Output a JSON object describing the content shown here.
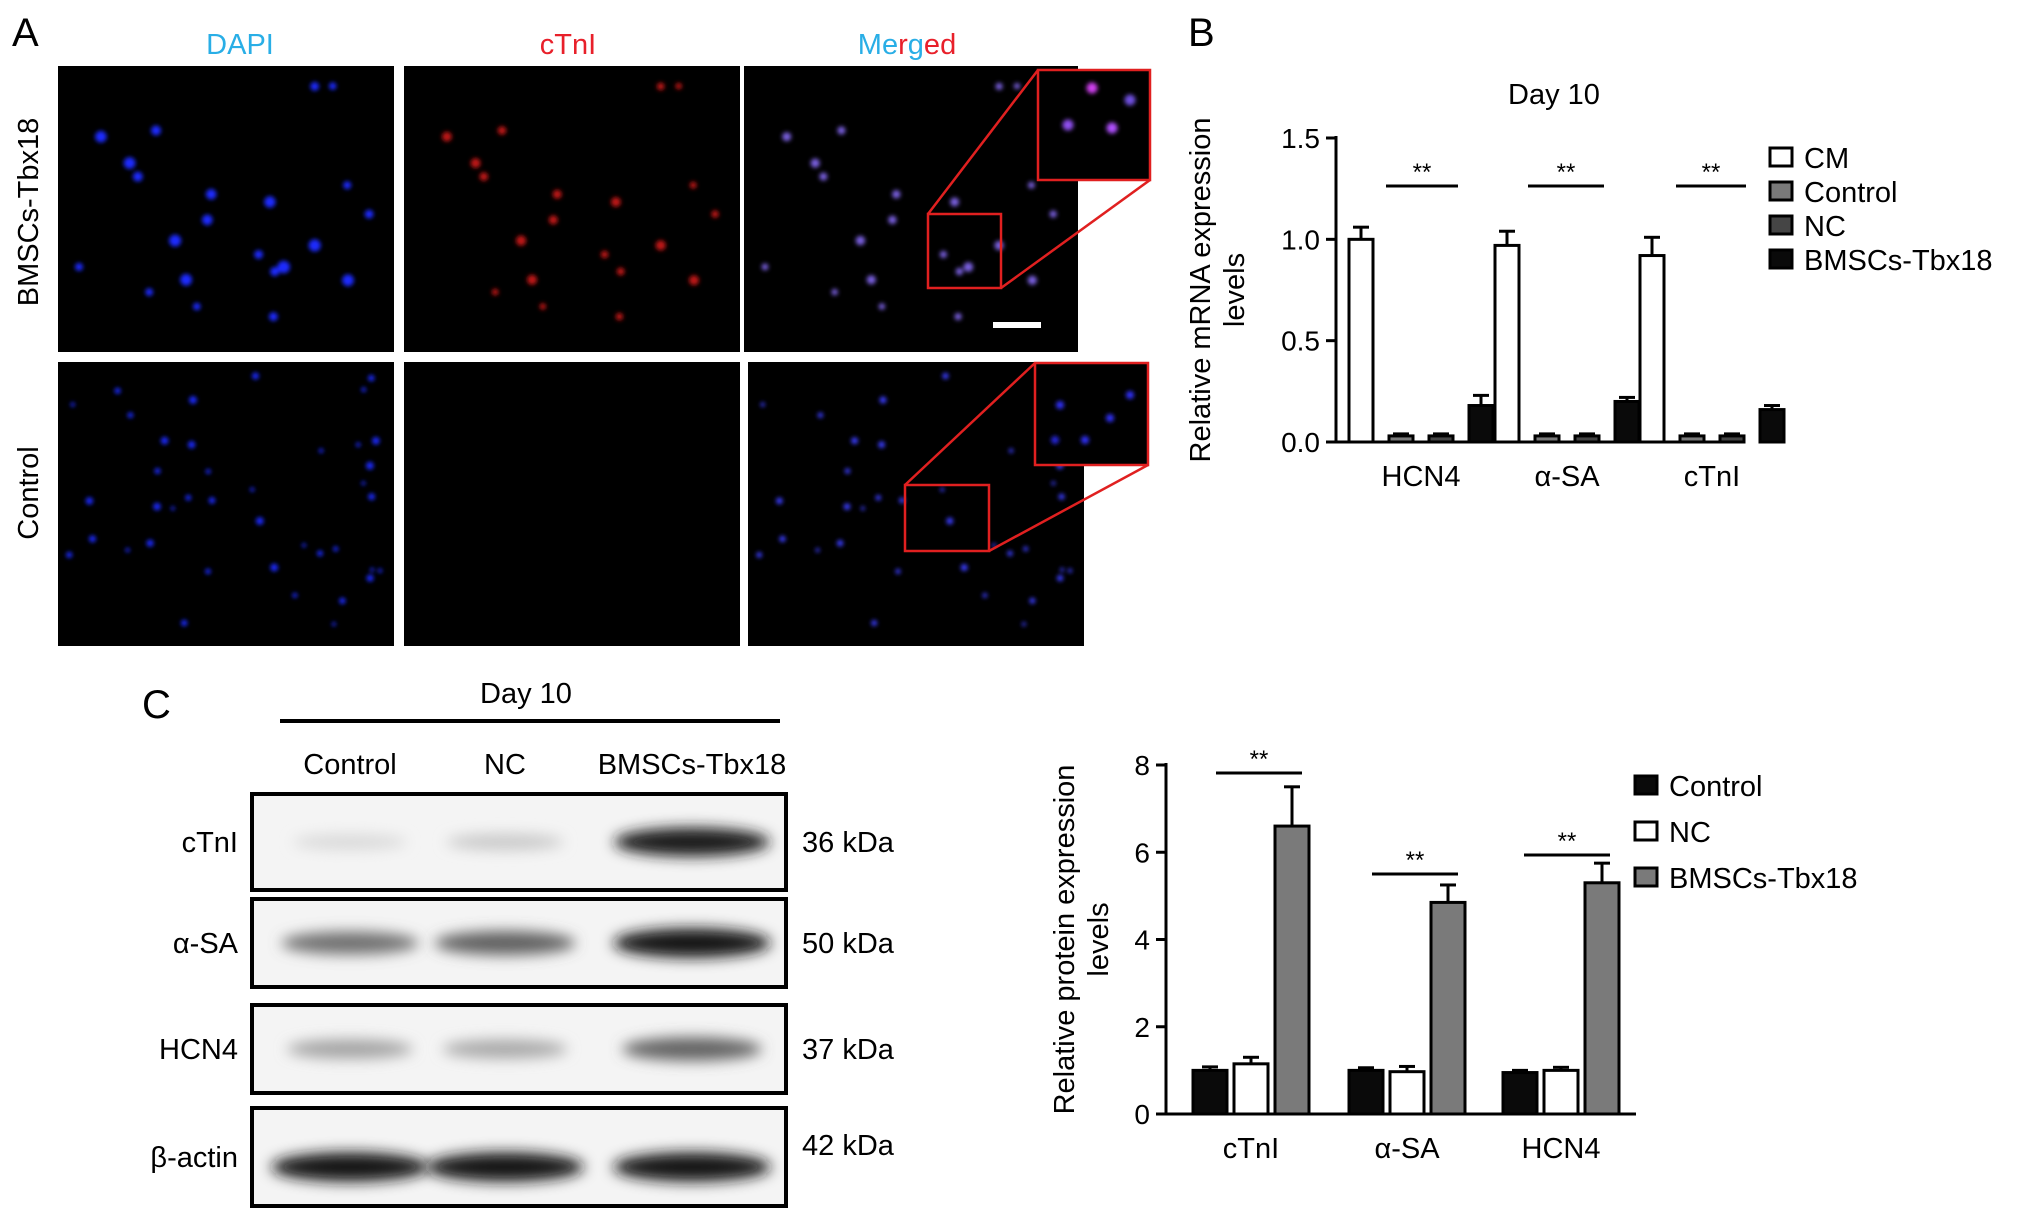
{
  "panel_labels": {
    "a": "A",
    "b": "B",
    "c": "C"
  },
  "panel_a": {
    "channels": [
      {
        "label": "DAPI",
        "color": "#29aee6"
      },
      {
        "label": "cTnI",
        "color": "#e8202a"
      }
    ],
    "merged_letters": [
      {
        "t": "M",
        "c": "#29aee6"
      },
      {
        "t": "e",
        "c": "#29aee6"
      },
      {
        "t": "r",
        "c": "#e8202a"
      },
      {
        "t": "g",
        "c": "#29aee6"
      },
      {
        "t": "e",
        "c": "#e8202a"
      },
      {
        "t": "d",
        "c": "#e8202a"
      }
    ],
    "rows": [
      "BMSCs-Tbx18",
      "Control"
    ],
    "inset_color": "#e02020"
  },
  "panel_c_blot": {
    "title": "Day 10",
    "lanes": [
      "Control",
      "NC",
      "BMSCs-Tbx18"
    ],
    "rows": [
      {
        "protein": "cTnI",
        "size": "36 kDa",
        "intensity": [
          0.08,
          0.15,
          0.92
        ]
      },
      {
        "protein": "α-SA",
        "size": "50 kDa",
        "intensity": [
          0.55,
          0.62,
          0.95
        ]
      },
      {
        "protein": "HCN4",
        "size": "37 kDa",
        "intensity": [
          0.32,
          0.3,
          0.6
        ]
      },
      {
        "protein": "β-actin",
        "size": "42 kDa",
        "intensity": [
          0.95,
          0.95,
          0.95
        ]
      }
    ]
  },
  "chart_data": [
    {
      "panel": "B",
      "type": "bar",
      "title": "Day 10",
      "ylabel": "Relative mRNA expression levels",
      "xlabel": "",
      "categories": [
        "HCN4",
        "α-SA",
        "cTnI"
      ],
      "ylim": [
        0,
        1.5
      ],
      "yticks": [
        "0.0",
        "0.5",
        "1.0",
        "1.5"
      ],
      "legend_position": "right",
      "series": [
        {
          "name": "CM",
          "fill": "#ffffff",
          "values": [
            1.0,
            0.97,
            0.92
          ],
          "errors": [
            0.06,
            0.07,
            0.09
          ]
        },
        {
          "name": "Control",
          "fill": "#7a7a7a",
          "values": [
            0.03,
            0.03,
            0.03
          ],
          "errors": [
            0.01,
            0.01,
            0.01
          ]
        },
        {
          "name": "NC",
          "fill": "#454545",
          "values": [
            0.03,
            0.03,
            0.03
          ],
          "errors": [
            0.01,
            0.01,
            0.01
          ]
        },
        {
          "name": "BMSCs-Tbx18",
          "fill": "#0a0a0a",
          "values": [
            0.18,
            0.2,
            0.16
          ],
          "errors": [
            0.05,
            0.02,
            0.02
          ]
        }
      ],
      "significance": [
        "**",
        "**",
        "**"
      ]
    },
    {
      "panel": "C",
      "type": "bar",
      "title": "",
      "ylabel": "Relative protein expression levels",
      "xlabel": "",
      "categories": [
        "cTnI",
        "α-SA",
        "HCN4"
      ],
      "ylim": [
        0,
        8
      ],
      "yticks": [
        "0",
        "2",
        "4",
        "6",
        "8"
      ],
      "legend_position": "right",
      "series": [
        {
          "name": "Control",
          "fill": "#0a0a0a",
          "values": [
            1.0,
            1.0,
            0.95
          ],
          "errors": [
            0.08,
            0.06,
            0.05
          ]
        },
        {
          "name": "NC",
          "fill": "#ffffff",
          "values": [
            1.15,
            0.97,
            1.0
          ],
          "errors": [
            0.15,
            0.12,
            0.07
          ]
        },
        {
          "name": "BMSCs-Tbx18",
          "fill": "#7a7a7a",
          "values": [
            6.6,
            4.85,
            5.3
          ],
          "errors": [
            0.9,
            0.4,
            0.45
          ]
        }
      ],
      "significance": [
        "**",
        "**",
        "**"
      ]
    }
  ]
}
